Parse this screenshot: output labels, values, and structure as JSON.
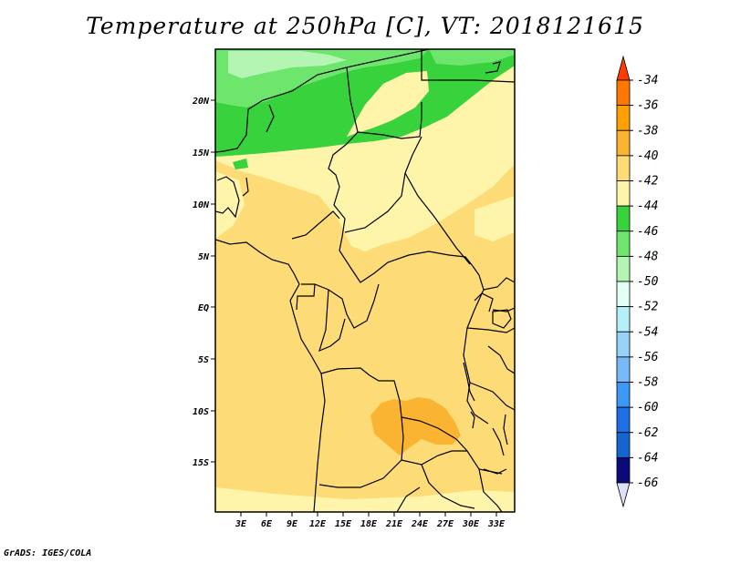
{
  "title": "Temperature at 250hPa [C], VT: 2018121615",
  "credit": "GrADS: IGES/COLA",
  "map": {
    "lon_range": [
      0,
      35
    ],
    "lat_range": [
      -20,
      25
    ],
    "lat_ticks": [
      "20N",
      "15N",
      "10N",
      "5N",
      "EQ",
      "5S",
      "10S",
      "15S"
    ],
    "lon_ticks": [
      "3E",
      "6E",
      "9E",
      "12E",
      "15E",
      "18E",
      "21E",
      "24E",
      "27E",
      "30E",
      "33E"
    ]
  },
  "colorbar": {
    "labels": [
      "-34",
      "-36",
      "-38",
      "-40",
      "-42",
      "-44",
      "-46",
      "-48",
      "-50",
      "-52",
      "-54",
      "-56",
      "-58",
      "-60",
      "-62",
      "-64",
      "-66"
    ],
    "colors": [
      "#ff3c00",
      "#ff7800",
      "#ffa000",
      "#fab432",
      "#fddc78",
      "#fff5aa",
      "#37d23c",
      "#6ee66e",
      "#b4f5b4",
      "#e1fff5",
      "#b4f0fa",
      "#96d2fa",
      "#78b9fa",
      "#3c97f5",
      "#1e6ee6",
      "#1464d2",
      "#0a0a78",
      "#dce0fa"
    ]
  }
}
